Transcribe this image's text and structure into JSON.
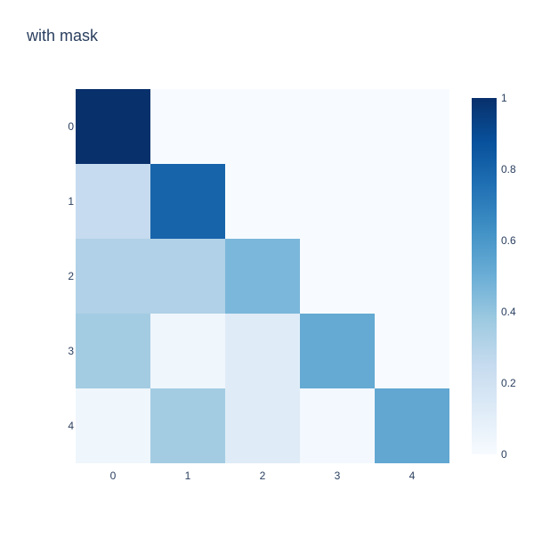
{
  "chart_data": {
    "type": "heatmap",
    "title": "with mask",
    "x": [
      "0",
      "1",
      "2",
      "3",
      "4"
    ],
    "y": [
      "0",
      "1",
      "2",
      "3",
      "4"
    ],
    "z": [
      [
        1.0,
        null,
        null,
        null,
        null
      ],
      [
        0.25,
        0.8,
        null,
        null,
        null
      ],
      [
        0.32,
        0.32,
        0.46,
        null,
        null
      ],
      [
        0.36,
        0.04,
        0.12,
        0.52,
        null
      ],
      [
        0.04,
        0.36,
        0.12,
        0.02,
        0.53
      ]
    ],
    "colorscale": "Blues",
    "zmin": 0,
    "zmax": 1,
    "colorbar_ticks": [
      "0",
      "0.2",
      "0.4",
      "0.6",
      "0.8",
      "1"
    ],
    "colors": {
      "masked": "#f7fbff",
      "text": "#2a3f5f",
      "scale_low": "#f7fbff",
      "scale_high": "#08306b"
    }
  }
}
